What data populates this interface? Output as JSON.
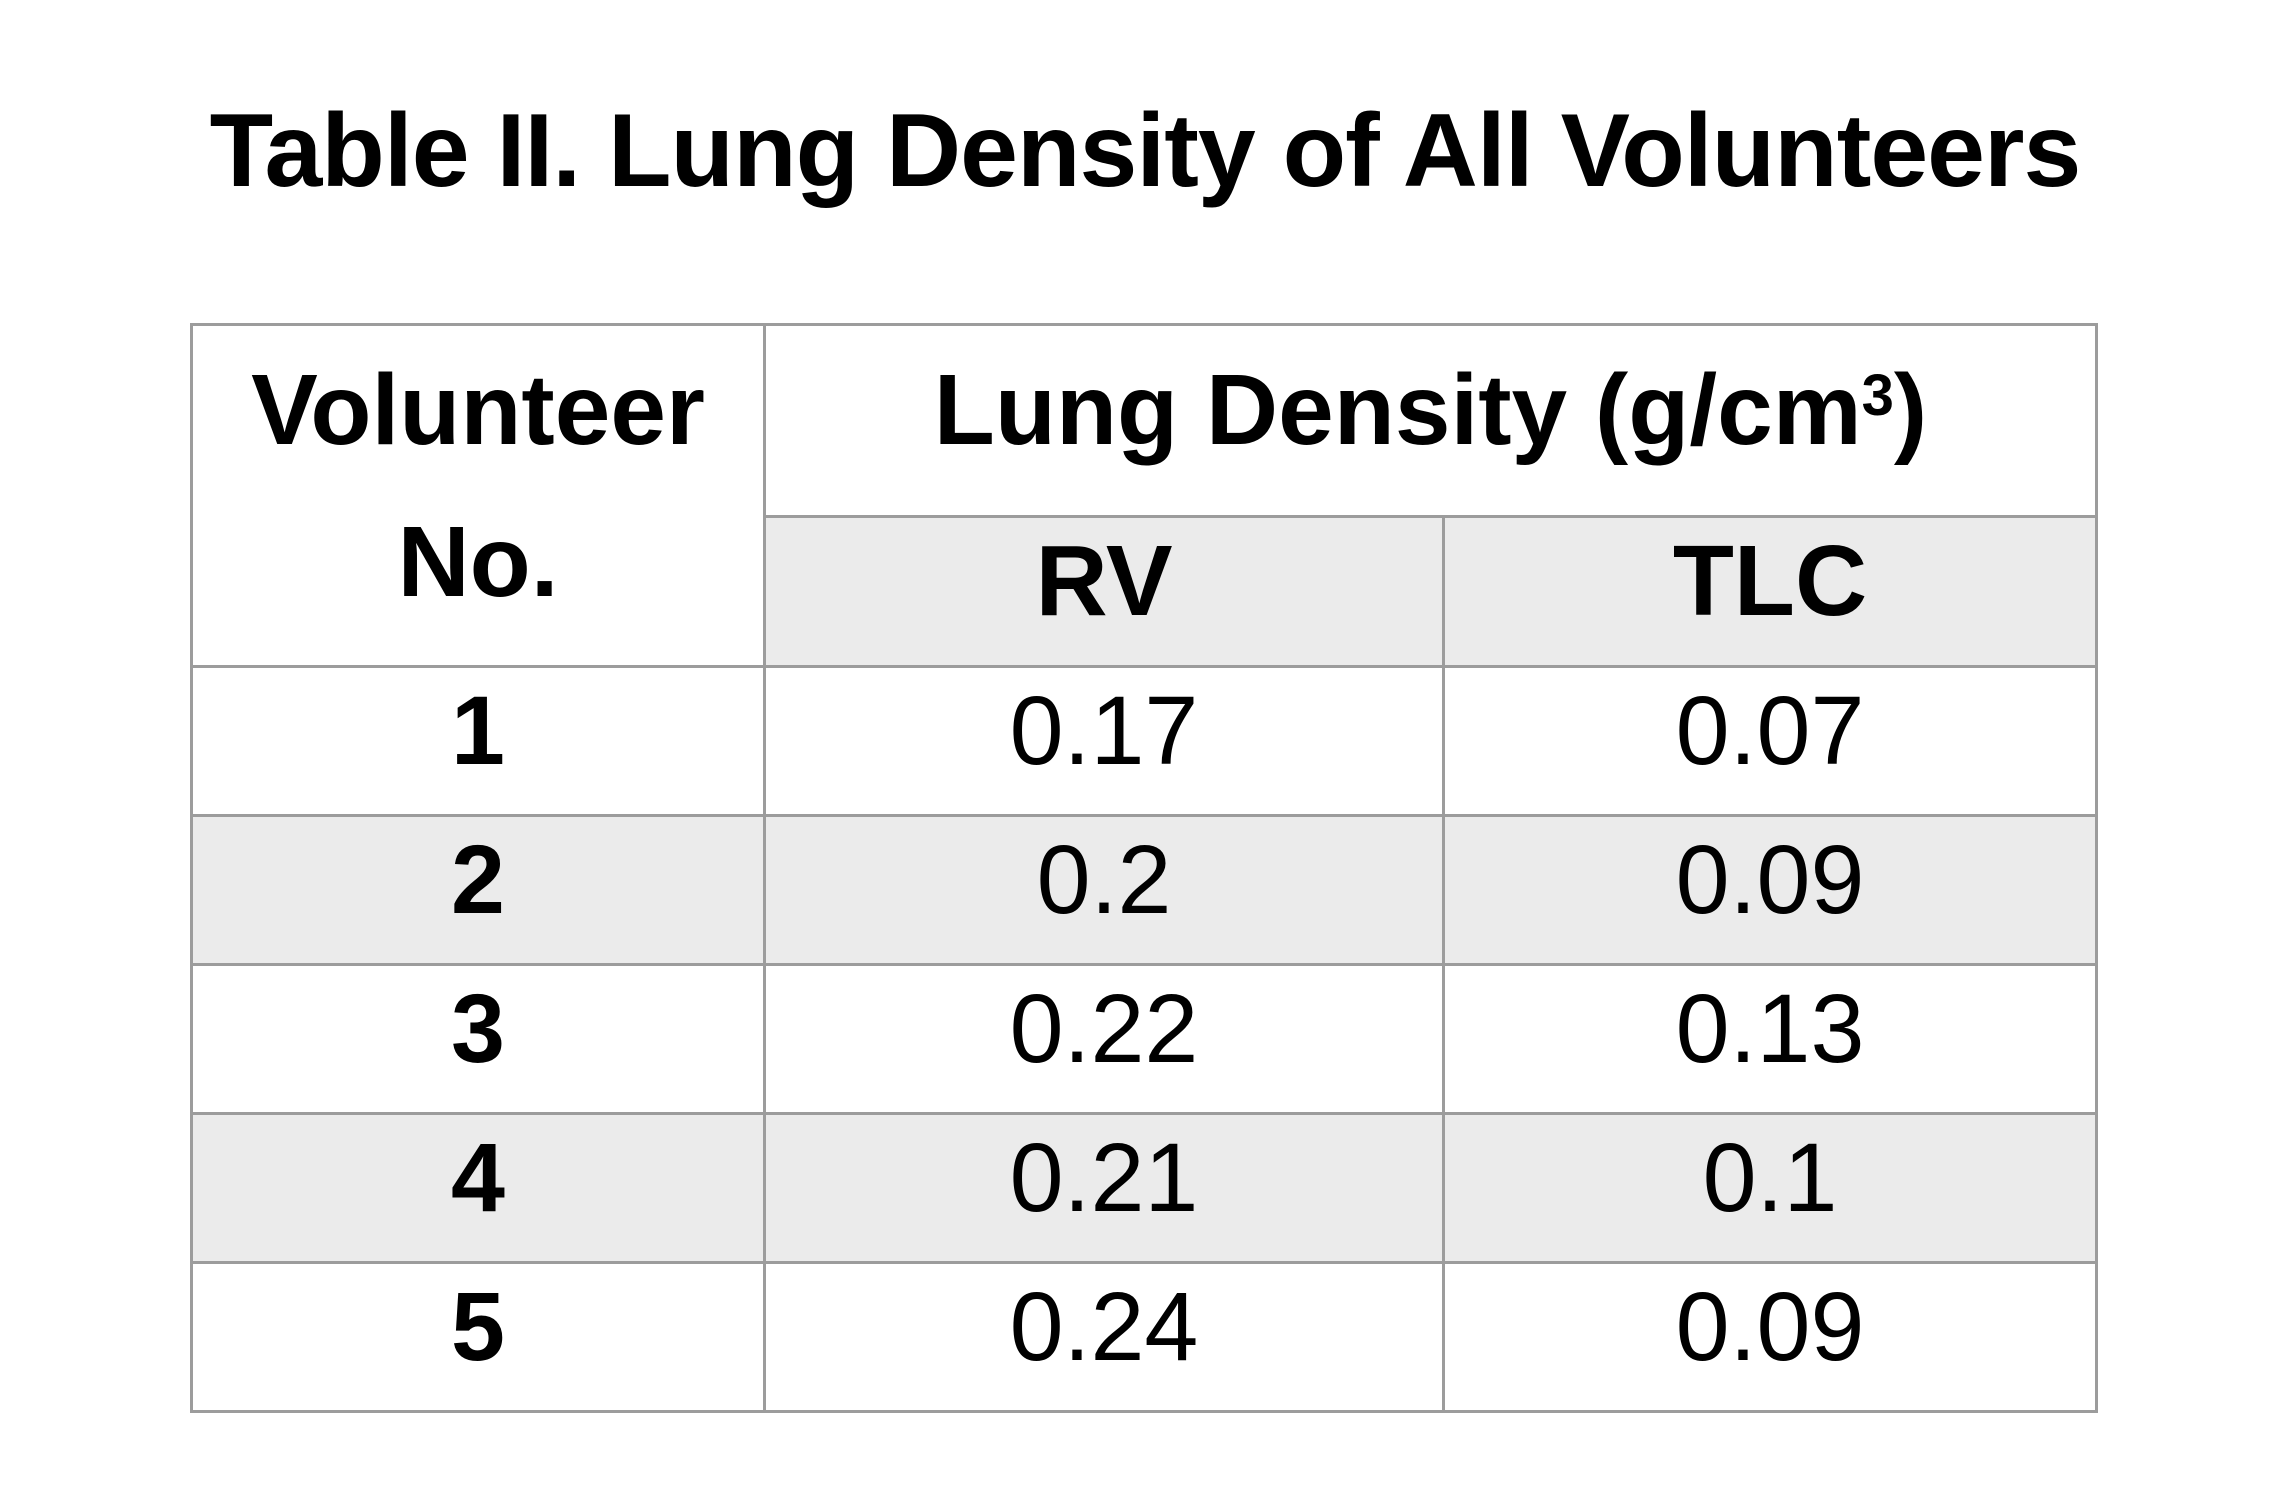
{
  "title": "Table II. Lung Density of All Volunteers",
  "table": {
    "header": {
      "volunteer_column": "Volunteer No.",
      "lung_density_prefix": "Lung Density (g/cm",
      "lung_density_superscript": "3",
      "lung_density_suffix": ")",
      "sub_columns": [
        "RV",
        "TLC"
      ]
    },
    "rows": [
      {
        "volunteer": "1",
        "rv": "0.17",
        "tlc": "0.07"
      },
      {
        "volunteer": "2",
        "rv": "0.2",
        "tlc": "0.09"
      },
      {
        "volunteer": "3",
        "rv": "0.22",
        "tlc": "0.13"
      },
      {
        "volunteer": "4",
        "rv": "0.21",
        "tlc": "0.1"
      },
      {
        "volunteer": "5",
        "rv": "0.24",
        "tlc": "0.09"
      }
    ]
  },
  "colors": {
    "background": "#ffffff",
    "text": "#000000",
    "border": "#9c9c9c",
    "row_shade": "#ebebeb"
  }
}
